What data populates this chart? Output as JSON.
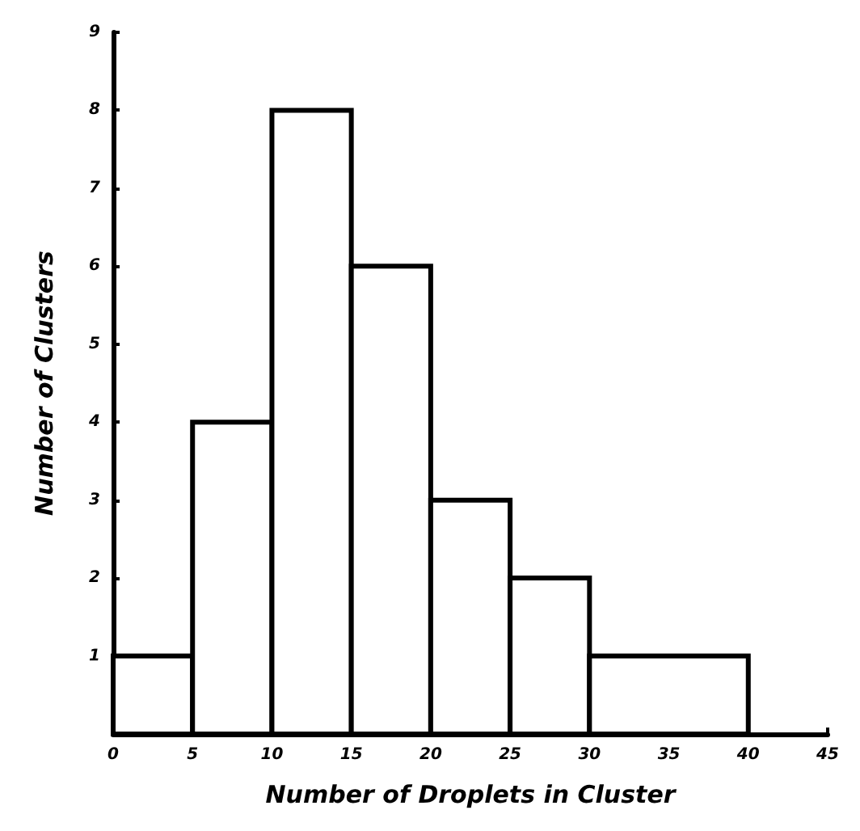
{
  "chart_data": {
    "type": "histogram",
    "xlabel": "Number of Droplets in Cluster",
    "ylabel": "Number of Clusters",
    "bins": [
      0,
      5,
      10,
      15,
      20,
      25,
      30,
      40
    ],
    "values": [
      1,
      4,
      8,
      6,
      3,
      2,
      1
    ],
    "color": "#000000",
    "xlim": [
      0,
      45
    ],
    "xticks": [
      0,
      5,
      10,
      15,
      20,
      25,
      30,
      35,
      40,
      45
    ],
    "ylim": [
      0,
      9
    ],
    "yticks": [
      1,
      2,
      3,
      4,
      5,
      6,
      7,
      8,
      9
    ],
    "grid": false
  }
}
